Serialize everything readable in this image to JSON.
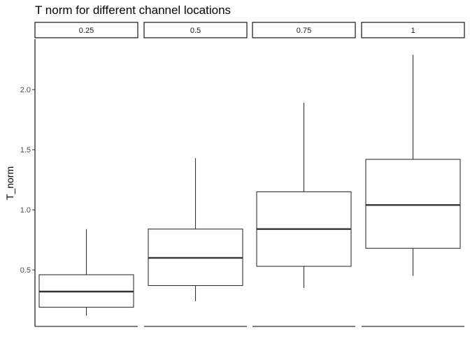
{
  "chart_data": {
    "type": "boxplot",
    "title": "T norm for different channel locations",
    "ylabel": "T_norm",
    "xlabel": "",
    "ylim": [
      0.03,
      2.42
    ],
    "yticks": [
      "0.5",
      "1.0",
      "1.5",
      "2.0"
    ],
    "grid": false,
    "facets": [
      {
        "label": "0.25",
        "min": 0.12,
        "q1": 0.19,
        "median": 0.32,
        "q3": 0.46,
        "max": 0.84
      },
      {
        "label": "0.5",
        "min": 0.24,
        "q1": 0.37,
        "median": 0.6,
        "q3": 0.84,
        "max": 1.43
      },
      {
        "label": "0.75",
        "min": 0.35,
        "q1": 0.53,
        "median": 0.84,
        "q3": 1.15,
        "max": 1.89
      },
      {
        "label": "1",
        "min": 0.45,
        "q1": 0.68,
        "median": 1.04,
        "q3": 1.42,
        "max": 2.29
      }
    ],
    "colors": {
      "line": "#333333",
      "fill": "#ffffff",
      "tick_text": "#4d4d4d"
    }
  }
}
